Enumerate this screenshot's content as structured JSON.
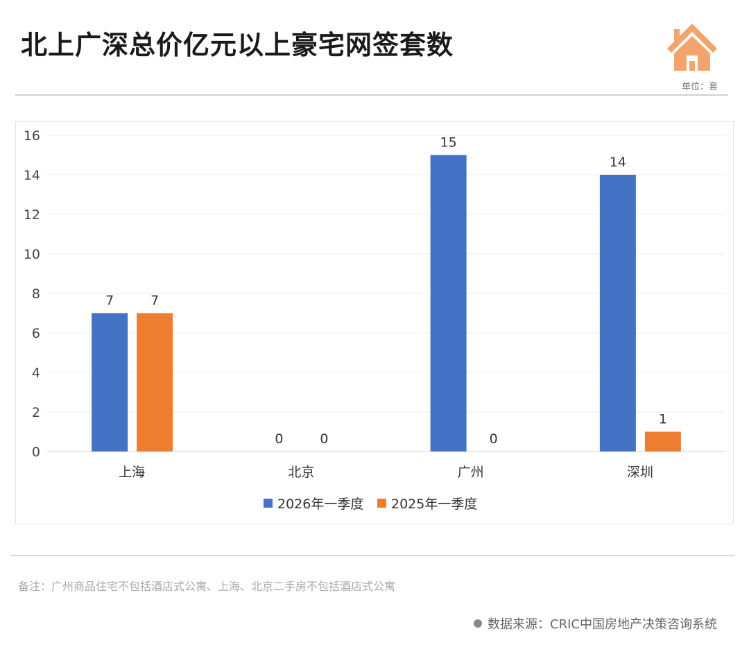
{
  "header": {
    "title": "北上广深总价亿元以上豪宅网签套数",
    "unit": "单位：套"
  },
  "colors": {
    "series1": "#4472C4",
    "series2": "#ED7D31",
    "house": "#F4A46A"
  },
  "chart_data": {
    "type": "bar",
    "title": "北上广深总价亿元以上豪宅网签套数",
    "categories": [
      "上海",
      "北京",
      "广州",
      "深圳"
    ],
    "series": [
      {
        "name": "2026年一季度",
        "values": [
          7,
          0,
          15,
          14
        ]
      },
      {
        "name": "2025年一季度",
        "values": [
          7,
          0,
          0,
          1
        ]
      }
    ],
    "yticks": [
      "0",
      "2",
      "4",
      "6",
      "8",
      "10",
      "12",
      "14",
      "16"
    ],
    "ylim": [
      0,
      16
    ],
    "grid": true,
    "legend": "bottom",
    "xlabel": "",
    "ylabel": ""
  },
  "footer": {
    "note": "备注：广州商品住宅不包括酒店式公寓、上海、北京二手房不包括酒店式公寓",
    "source": "数据来源：CRIC中国房地产决策咨询系统"
  }
}
